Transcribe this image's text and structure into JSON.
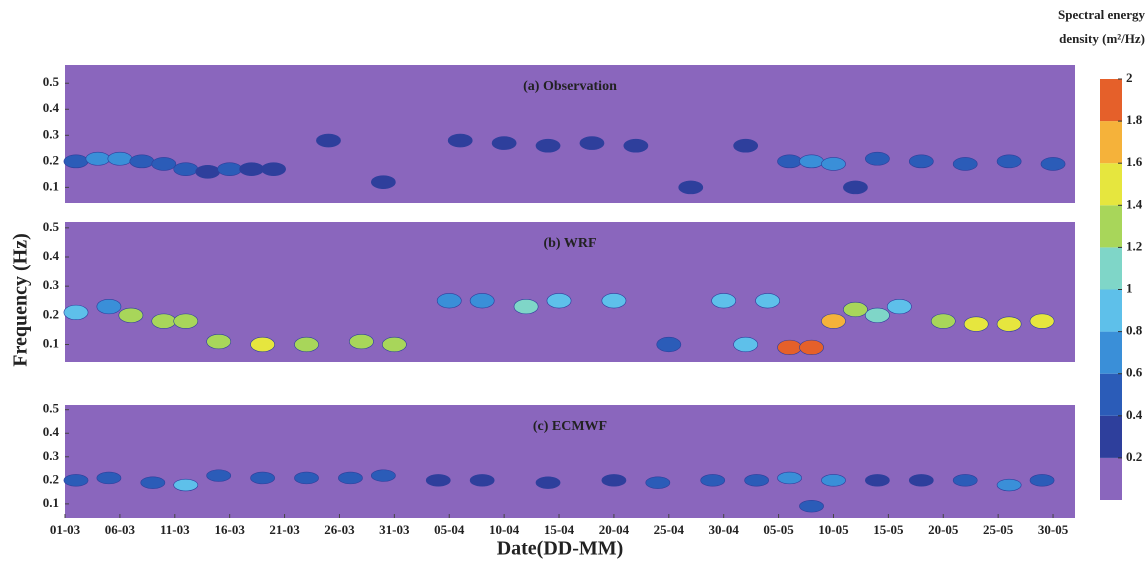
{
  "chart_data": {
    "type": "contour",
    "xlabel": "Date(DD-MM)",
    "ylabel": "Frequency (Hz)",
    "xlim": [
      0,
      92
    ],
    "xticks": [
      {
        "value": 0,
        "label": "01-03"
      },
      {
        "value": 5,
        "label": "06-03"
      },
      {
        "value": 10,
        "label": "11-03"
      },
      {
        "value": 15,
        "label": "16-03"
      },
      {
        "value": 20,
        "label": "21-03"
      },
      {
        "value": 25,
        "label": "26-03"
      },
      {
        "value": 30,
        "label": "31-03"
      },
      {
        "value": 35,
        "label": "05-04"
      },
      {
        "value": 40,
        "label": "10-04"
      },
      {
        "value": 45,
        "label": "15-04"
      },
      {
        "value": 50,
        "label": "20-04"
      },
      {
        "value": 55,
        "label": "25-04"
      },
      {
        "value": 60,
        "label": "30-04"
      },
      {
        "value": 65,
        "label": "05-05"
      },
      {
        "value": 70,
        "label": "10-05"
      },
      {
        "value": 75,
        "label": "15-05"
      },
      {
        "value": 80,
        "label": "20-05"
      },
      {
        "value": 85,
        "label": "25-05"
      },
      {
        "value": 90,
        "label": "30-05"
      }
    ],
    "colorbar": {
      "label": [
        "Spectral energy",
        "density (m²/Hz)"
      ],
      "lim": [
        0,
        2
      ],
      "ticks": [
        0.2,
        0.4,
        0.6,
        0.8,
        1,
        1.2,
        1.4,
        1.6,
        1.8,
        2
      ],
      "colors": [
        "#8a66bd",
        "#2e3f9c",
        "#2b5cb8",
        "#3a8fd8",
        "#5ec0ea",
        "#7fd6c8",
        "#a8d65a",
        "#e6e63e",
        "#f5b23a",
        "#e5602a"
      ]
    },
    "panels": [
      {
        "title": "(a) Observation",
        "ylim": [
          0.04,
          0.57
        ],
        "yticks": [
          0.1,
          0.2,
          0.3,
          0.4,
          0.5
        ],
        "x": [
          1,
          3,
          5,
          7,
          9,
          11,
          13,
          15,
          17,
          19,
          24,
          29,
          36,
          40,
          44,
          48,
          52,
          57,
          62,
          66,
          68,
          70,
          72,
          74,
          78,
          82,
          86,
          90
        ],
        "y": [
          0.2,
          0.21,
          0.21,
          0.2,
          0.19,
          0.17,
          0.16,
          0.17,
          0.17,
          0.17,
          0.28,
          0.12,
          0.28,
          0.27,
          0.26,
          0.27,
          0.26,
          0.1,
          0.26,
          0.2,
          0.2,
          0.19,
          0.1,
          0.21,
          0.2,
          0.19,
          0.2,
          0.19
        ],
        "values": [
          0.5,
          0.7,
          0.6,
          0.5,
          0.4,
          0.4,
          0.3,
          0.4,
          0.3,
          0.3,
          0.3,
          0.25,
          0.3,
          0.35,
          0.3,
          0.3,
          0.3,
          0.25,
          0.3,
          0.5,
          0.7,
          0.6,
          0.3,
          0.5,
          0.4,
          0.4,
          0.45,
          0.4
        ]
      },
      {
        "title": "(b) WRF",
        "ylim": [
          0.04,
          0.52
        ],
        "yticks": [
          0.1,
          0.2,
          0.3,
          0.4,
          0.5
        ],
        "x": [
          1,
          4,
          6,
          9,
          11,
          14,
          18,
          22,
          27,
          30,
          35,
          38,
          42,
          45,
          50,
          55,
          60,
          62,
          64,
          66,
          68,
          70,
          72,
          74,
          76,
          80,
          83,
          86,
          89
        ],
        "y": [
          0.21,
          0.23,
          0.2,
          0.18,
          0.18,
          0.11,
          0.1,
          0.1,
          0.11,
          0.1,
          0.25,
          0.25,
          0.23,
          0.25,
          0.25,
          0.1,
          0.25,
          0.1,
          0.25,
          0.09,
          0.09,
          0.18,
          0.22,
          0.2,
          0.23,
          0.18,
          0.17,
          0.17,
          0.18
        ],
        "values": [
          0.8,
          0.7,
          1.2,
          1.3,
          1.2,
          1.3,
          1.4,
          1.3,
          1.3,
          1.2,
          0.7,
          0.7,
          1.1,
          0.8,
          0.8,
          0.5,
          0.8,
          0.9,
          0.8,
          1.9,
          1.8,
          1.7,
          1.2,
          1.0,
          0.8,
          1.2,
          1.5,
          1.5,
          1.4
        ]
      },
      {
        "title": "(c) ECMWF",
        "ylim": [
          0.04,
          0.52
        ],
        "yticks": [
          0.1,
          0.2,
          0.3,
          0.4,
          0.5
        ],
        "x": [
          1,
          4,
          8,
          11,
          14,
          18,
          22,
          26,
          29,
          34,
          38,
          44,
          50,
          54,
          59,
          63,
          66,
          68,
          70,
          74,
          78,
          82,
          86,
          89
        ],
        "y": [
          0.2,
          0.21,
          0.19,
          0.18,
          0.22,
          0.21,
          0.21,
          0.21,
          0.22,
          0.2,
          0.2,
          0.19,
          0.2,
          0.19,
          0.2,
          0.2,
          0.21,
          0.09,
          0.2,
          0.2,
          0.2,
          0.2,
          0.18,
          0.2
        ],
        "values": [
          0.4,
          0.4,
          0.5,
          0.8,
          0.4,
          0.4,
          0.4,
          0.4,
          0.4,
          0.3,
          0.3,
          0.3,
          0.3,
          0.4,
          0.4,
          0.5,
          0.6,
          0.4,
          0.7,
          0.3,
          0.3,
          0.4,
          0.7,
          0.4
        ]
      }
    ]
  }
}
